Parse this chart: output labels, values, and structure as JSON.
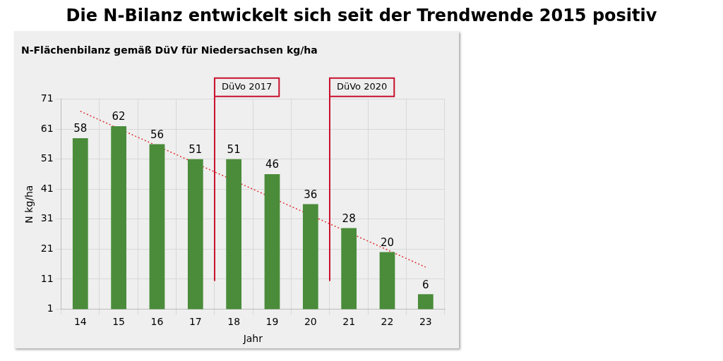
{
  "chart_data": {
    "type": "bar",
    "title": "Die N-Bilanz entwickelt sich seit der Trendwende 2015 positiv",
    "subtitle": "N-Flächenbilanz gemäß DüV für Niedersachsen kg/ha",
    "xlabel": "Jahr",
    "ylabel": "N kg/ha",
    "x": [
      14,
      15,
      16,
      17,
      18,
      19,
      20,
      21,
      22,
      23
    ],
    "series": [
      {
        "color": "#4a8c3a",
        "values": [
          58,
          62,
          56,
          51,
          51,
          46,
          36,
          28,
          20,
          6
        ],
        "value_labels": [
          "58",
          "62",
          "56",
          "51",
          "51",
          "46",
          "36",
          "28",
          "20",
          "6"
        ]
      },
      {
        "type": "line",
        "color": "#e03030",
        "line_style": "dotted",
        "marker": "none",
        "x": [
          14,
          23
        ],
        "values": [
          67,
          15
        ]
      }
    ],
    "xlim": [
      13.5,
      23.5
    ],
    "xticks": [
      14,
      15,
      16,
      17,
      18,
      19,
      20,
      21,
      22,
      23
    ],
    "ylim": [
      1,
      71
    ],
    "yticks": [
      1,
      11,
      21,
      31,
      41,
      51,
      61,
      71
    ],
    "ref_lines": [
      {
        "axis": "x",
        "value": 17.5,
        "label": "DüVo 2017",
        "color": "#c8102e"
      },
      {
        "axis": "x",
        "value": 20.5,
        "label": "DüVo 2020",
        "color": "#c8102e"
      }
    ],
    "grid": true,
    "legend": false
  }
}
